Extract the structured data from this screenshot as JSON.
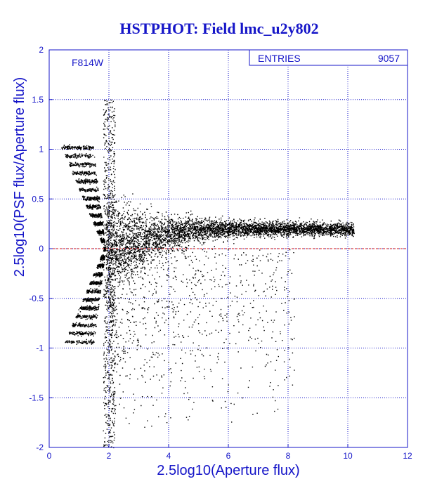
{
  "chart_data": {
    "type": "scatter",
    "title": "HSTPHOT: Field lmc_u2y802",
    "filter_label": "F814W",
    "xlabel": "2.5log10(Aperture flux)",
    "ylabel": "2.5log10(PSF flux/Aperture flux)",
    "xlim": [
      0,
      12
    ],
    "ylim": [
      -2,
      2
    ],
    "x_ticks": [
      0,
      2,
      4,
      6,
      8,
      10,
      12
    ],
    "y_ticks": [
      -2,
      -1.5,
      -1,
      -0.5,
      0,
      0.5,
      1,
      1.5,
      2
    ],
    "x_tick_labels": [
      "0",
      "2",
      "4",
      "6",
      "8",
      "10",
      "12"
    ],
    "y_tick_labels": [
      "-2",
      "-1.5",
      "-1",
      "-0.5",
      "0",
      "0.5",
      "1",
      "1.5",
      "2"
    ],
    "grid": true,
    "reference_line_y": 0,
    "entries_label": "ENTRIES",
    "entries_value": "9057",
    "point_count": 9057,
    "colors": {
      "title": "#1515c8",
      "axis": "#1515c8",
      "grid": "#1515c8",
      "points": "#000000",
      "reference_line": "#d01010"
    }
  }
}
